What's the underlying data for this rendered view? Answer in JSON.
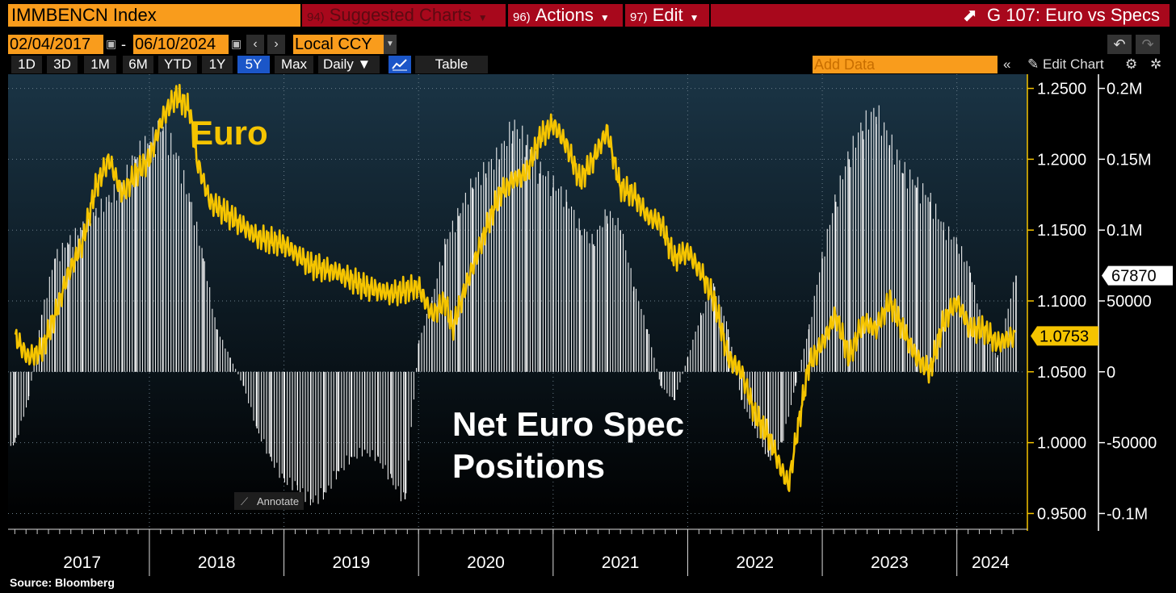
{
  "toolbar": {
    "ticker": "IMMBENCN Index",
    "suggested_num": "94)",
    "suggested_label": "Suggested Charts",
    "actions_num": "96)",
    "actions_label": "Actions",
    "edit_num": "97)",
    "edit_label": "Edit",
    "title": "G 107: Euro vs Specs"
  },
  "dates": {
    "start": "02/04/2017",
    "end": "06/10/2024",
    "currency": "Local CCY"
  },
  "ranges": [
    "1D",
    "3D",
    "1M",
    "6M",
    "YTD",
    "1Y",
    "5Y",
    "Max"
  ],
  "selected_range": "5Y",
  "frequency": "Daily",
  "table_label": "Table",
  "add_data_placeholder": "Add Data",
  "edit_chart_label": "Edit Chart",
  "annotate_label": "Annotate",
  "source": "Source: Bloomberg",
  "colors": {
    "euro_line": "#f5c400",
    "bars": "#ffffff",
    "panel": "#0d1e2b",
    "highlight_blue": "#1b56c8"
  },
  "chart_data": {
    "type": "line",
    "annotations": [
      "Euro",
      "Net Euro Spec Positions"
    ],
    "x_ticks": [
      "2017",
      "2018",
      "2019",
      "2020",
      "2021",
      "2022",
      "2023",
      "2024"
    ],
    "left_axis": {
      "ticks": [
        "1.2500",
        "1.2000",
        "1.1500",
        "1.1000",
        "1.0500",
        "1.0000",
        "0.9500"
      ],
      "range": [
        0.94,
        1.26
      ],
      "last_value": "1.0753"
    },
    "right_axis": {
      "ticks": [
        "0.2M",
        "0.15M",
        "0.1M",
        "50000",
        "0",
        "-50000",
        "-0.1M"
      ],
      "range": [
        -110000,
        210000
      ],
      "last_value": "67870"
    },
    "series": [
      {
        "name": "Euro",
        "axis": "left",
        "x": [
          2017.0,
          2017.1,
          2017.2,
          2017.3,
          2017.4,
          2017.5,
          2017.6,
          2017.7,
          2017.8,
          2017.9,
          2018.0,
          2018.1,
          2018.2,
          2018.3,
          2018.35,
          2018.45,
          2018.6,
          2018.8,
          2019.0,
          2019.2,
          2019.4,
          2019.6,
          2019.8,
          2020.0,
          2020.1,
          2020.2,
          2020.25,
          2020.35,
          2020.5,
          2020.6,
          2020.7,
          2020.8,
          2020.9,
          2021.0,
          2021.1,
          2021.2,
          2021.3,
          2021.4,
          2021.5,
          2021.6,
          2021.7,
          2021.8,
          2021.9,
          2022.0,
          2022.1,
          2022.2,
          2022.3,
          2022.4,
          2022.5,
          2022.6,
          2022.7,
          2022.75,
          2022.8,
          2022.9,
          2023.0,
          2023.1,
          2023.2,
          2023.3,
          2023.4,
          2023.5,
          2023.6,
          2023.7,
          2023.8,
          2023.9,
          2024.0,
          2024.1,
          2024.2,
          2024.3,
          2024.44
        ],
        "values": [
          1.075,
          1.06,
          1.065,
          1.09,
          1.12,
          1.14,
          1.18,
          1.2,
          1.175,
          1.19,
          1.2,
          1.23,
          1.245,
          1.235,
          1.2,
          1.17,
          1.16,
          1.145,
          1.14,
          1.125,
          1.12,
          1.11,
          1.105,
          1.11,
          1.09,
          1.1,
          1.08,
          1.11,
          1.15,
          1.175,
          1.185,
          1.19,
          1.215,
          1.225,
          1.21,
          1.185,
          1.2,
          1.22,
          1.18,
          1.175,
          1.16,
          1.155,
          1.13,
          1.135,
          1.12,
          1.1,
          1.06,
          1.05,
          1.02,
          1.005,
          0.98,
          0.97,
          1.0,
          1.055,
          1.07,
          1.09,
          1.06,
          1.085,
          1.08,
          1.1,
          1.08,
          1.06,
          1.05,
          1.085,
          1.1,
          1.08,
          1.08,
          1.07,
          1.0753
        ]
      },
      {
        "name": "Net Euro Spec Positions",
        "axis": "right",
        "type": "bar",
        "x": [
          2017.0,
          2017.1,
          2017.2,
          2017.3,
          2017.4,
          2017.5,
          2017.6,
          2017.7,
          2017.8,
          2017.9,
          2018.0,
          2018.1,
          2018.2,
          2018.3,
          2018.4,
          2018.5,
          2018.6,
          2018.7,
          2018.8,
          2018.9,
          2019.0,
          2019.1,
          2019.2,
          2019.3,
          2019.4,
          2019.5,
          2019.6,
          2019.7,
          2019.8,
          2019.9,
          2020.0,
          2020.1,
          2020.2,
          2020.3,
          2020.4,
          2020.5,
          2020.6,
          2020.7,
          2020.8,
          2020.9,
          2021.0,
          2021.1,
          2021.2,
          2021.3,
          2021.4,
          2021.5,
          2021.6,
          2021.7,
          2021.8,
          2021.9,
          2022.0,
          2022.1,
          2022.2,
          2022.3,
          2022.4,
          2022.5,
          2022.6,
          2022.7,
          2022.8,
          2022.9,
          2023.0,
          2023.1,
          2023.2,
          2023.3,
          2023.4,
          2023.5,
          2023.6,
          2023.7,
          2023.8,
          2023.9,
          2024.0,
          2024.1,
          2024.2,
          2024.3,
          2024.44
        ],
        "values": [
          -50000,
          -20000,
          40000,
          80000,
          90000,
          100000,
          110000,
          120000,
          130000,
          150000,
          160000,
          170000,
          150000,
          120000,
          80000,
          30000,
          10000,
          -10000,
          -40000,
          -60000,
          -75000,
          -80000,
          -90000,
          -85000,
          -70000,
          -60000,
          -55000,
          -60000,
          -75000,
          -90000,
          20000,
          50000,
          90000,
          110000,
          130000,
          140000,
          150000,
          170000,
          160000,
          140000,
          130000,
          120000,
          100000,
          90000,
          110000,
          100000,
          60000,
          30000,
          -10000,
          -20000,
          10000,
          40000,
          60000,
          30000,
          -20000,
          -40000,
          -60000,
          -50000,
          -10000,
          30000,
          80000,
          120000,
          150000,
          170000,
          180000,
          160000,
          140000,
          130000,
          120000,
          100000,
          90000,
          70000,
          30000,
          10000,
          67870
        ]
      }
    ]
  }
}
